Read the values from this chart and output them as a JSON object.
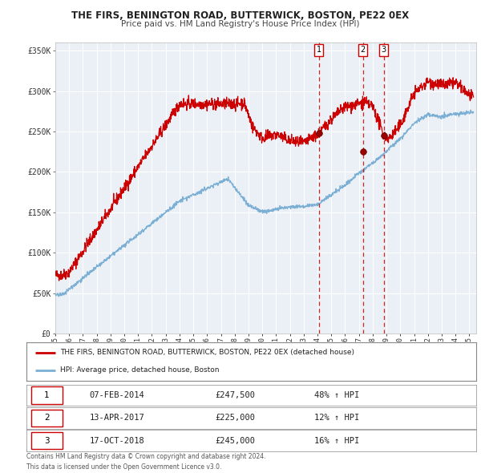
{
  "title": "THE FIRS, BENINGTON ROAD, BUTTERWICK, BOSTON, PE22 0EX",
  "subtitle": "Price paid vs. HM Land Registry's House Price Index (HPI)",
  "legend_line1": "THE FIRS, BENINGTON ROAD, BUTTERWICK, BOSTON, PE22 0EX (detached house)",
  "legend_line2": "HPI: Average price, detached house, Boston",
  "transactions": [
    {
      "num": 1,
      "date": "07-FEB-2014",
      "price": "£247,500",
      "hpi": "48% ↑ HPI",
      "year": 2014.1
    },
    {
      "num": 2,
      "date": "13-APR-2017",
      "price": "£225,000",
      "hpi": "12% ↑ HPI",
      "year": 2017.28
    },
    {
      "num": 3,
      "date": "17-OCT-2018",
      "price": "£245,000",
      "hpi": "16% ↑ HPI",
      "year": 2018.8
    }
  ],
  "transaction_prices": [
    247500,
    225000,
    245000
  ],
  "footer1": "Contains HM Land Registry data © Crown copyright and database right 2024.",
  "footer2": "This data is licensed under the Open Government Licence v3.0.",
  "red_color": "#cc0000",
  "blue_color": "#7bafd4",
  "plot_bg": "#eaf0f6",
  "grid_color": "#ffffff",
  "border_color": "#aaaaaa",
  "ylim": [
    0,
    360000
  ],
  "xlim_start": 1995,
  "xlim_end": 2025.5,
  "yticks": [
    0,
    50000,
    100000,
    150000,
    200000,
    250000,
    300000,
    350000
  ]
}
